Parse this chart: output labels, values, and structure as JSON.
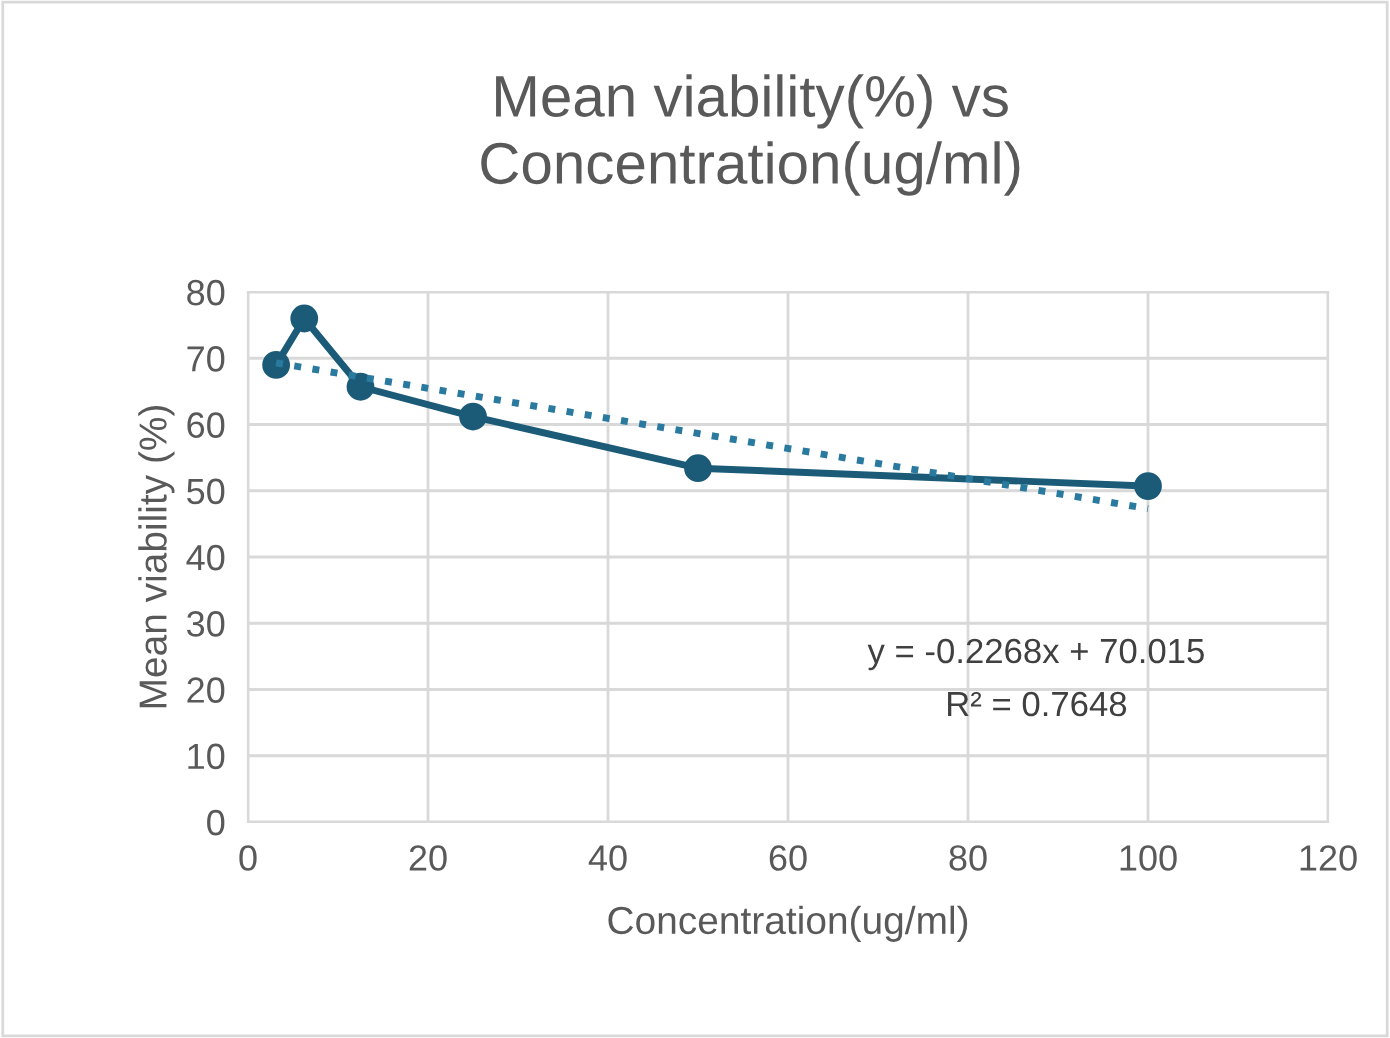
{
  "chart_data": {
    "type": "line",
    "title": "Mean viability(%) vs\nConcentration(ug/ml)",
    "xlabel": "Concentration(ug/ml)",
    "ylabel": "Mean viability (%)",
    "series": [
      {
        "x": [
          3.125,
          6.25,
          12.5,
          25,
          50,
          100
        ],
        "values": [
          69,
          76,
          65.7,
          61.2,
          53.4,
          50.7
        ],
        "color": "#1b5b78",
        "marker": "circle",
        "line_style": "solid"
      },
      {
        "type": "line",
        "x": [
          3.125,
          100
        ],
        "values": [
          69.3,
          47.3
        ],
        "color": "#2a7aa0",
        "marker": "none",
        "line_style": "dotted"
      }
    ],
    "annotations": [
      "y = -0.2268x + 70.015",
      "R² = 0.7648"
    ],
    "xlim": [
      0,
      120
    ],
    "xticks": [
      0,
      20,
      40,
      60,
      80,
      100,
      120
    ],
    "ylim": [
      0,
      80
    ],
    "yticks": [
      0,
      10,
      20,
      30,
      40,
      50,
      60,
      70,
      80
    ],
    "grid": true
  }
}
